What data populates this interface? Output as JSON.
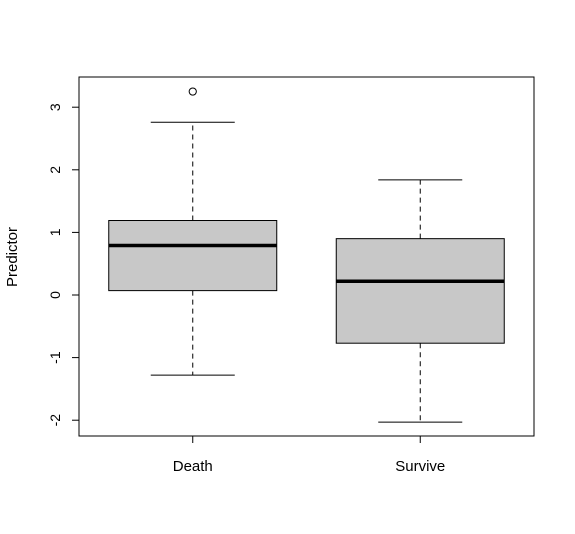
{
  "chart_data": {
    "type": "boxplot",
    "title": "",
    "xlabel": "",
    "ylabel": "Predictor",
    "ylim": [
      -2.25,
      3.45
    ],
    "yticks": [
      -2,
      -1,
      0,
      1,
      2,
      3
    ],
    "ytick_labels": [
      "-2",
      "-1",
      "0",
      "1",
      "2",
      "3"
    ],
    "grid": false,
    "legend": "none",
    "categories": [
      "Death",
      "Survive"
    ],
    "boxes": [
      {
        "category": "Death",
        "whisker_low": -1.28,
        "q1": 0.07,
        "median": 0.79,
        "q3": 1.19,
        "whisker_high": 2.76,
        "outliers": [
          3.25
        ]
      },
      {
        "category": "Survive",
        "whisker_low": -2.03,
        "q1": -0.77,
        "median": 0.22,
        "q3": 0.9,
        "whisker_high": 1.84,
        "outliers": []
      }
    ],
    "colors": {
      "box_fill": "#c8c8c8",
      "stroke": "#000000"
    }
  }
}
